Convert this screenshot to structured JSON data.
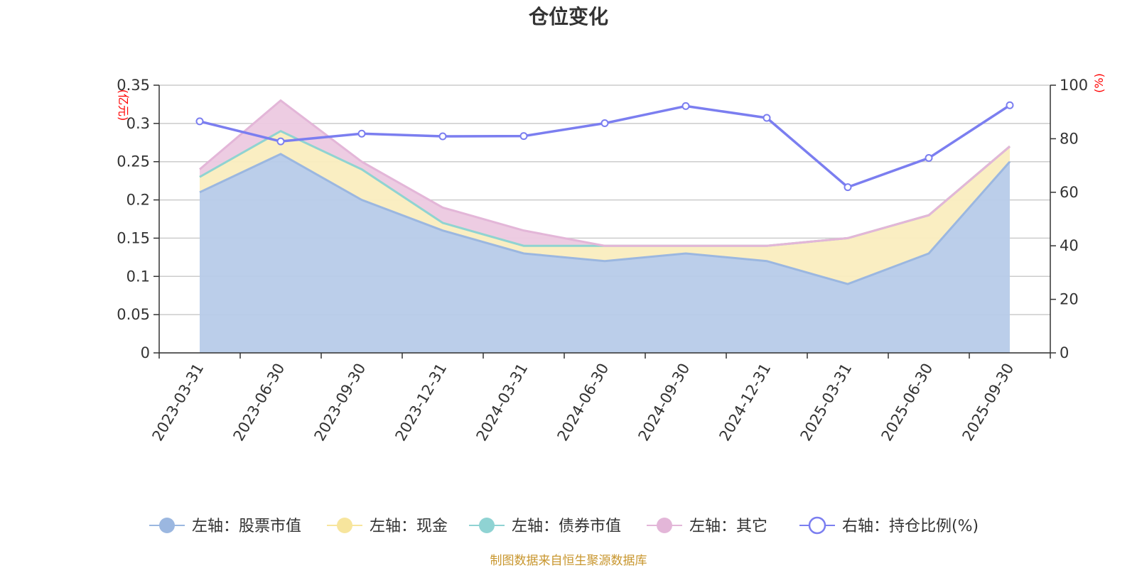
{
  "chart_data": {
    "type": "area",
    "title": "仓位变化",
    "left_axis": {
      "unit": "(亿元)",
      "ticks": [
        "0",
        "0.05",
        "0.1",
        "0.15",
        "0.2",
        "0.25",
        "0.3",
        "0.35"
      ],
      "ylim": [
        0,
        0.35
      ]
    },
    "right_axis": {
      "unit": "(%)",
      "ticks": [
        "0",
        "20",
        "40",
        "60",
        "80",
        "100"
      ],
      "ylim": [
        0,
        100
      ]
    },
    "categories": [
      "2023-03-31",
      "2023-06-30",
      "2023-09-30",
      "2023-12-31",
      "2024-03-31",
      "2024-06-30",
      "2024-09-30",
      "2024-12-31",
      "2025-03-31",
      "2025-06-30",
      "2025-09-30"
    ],
    "series": [
      {
        "name": "左轴：股票市值",
        "axis": "left",
        "stack": true,
        "color": "#9bb7e0",
        "fill": "#b7cbe9",
        "values": [
          0.21,
          0.26,
          0.2,
          0.16,
          0.13,
          0.12,
          0.13,
          0.12,
          0.09,
          0.13,
          0.25
        ]
      },
      {
        "name": "左轴：现金",
        "axis": "left",
        "stack": true,
        "color": "#f7e59d",
        "fill": "#faedbf",
        "values": [
          0.02,
          0.03,
          0.04,
          0.01,
          0.01,
          0.02,
          0.01,
          0.02,
          0.06,
          0.05,
          0.02
        ]
      },
      {
        "name": "左轴：债券市值",
        "axis": "left",
        "stack": true,
        "color": "#8fd3d3",
        "fill": "#b5e3e3",
        "values": [
          0,
          0,
          0,
          0,
          0,
          0,
          0,
          0,
          0,
          0,
          0
        ]
      },
      {
        "name": "左轴：其它",
        "axis": "left",
        "stack": true,
        "color": "#e3b6d8",
        "fill": "#ecc9e0",
        "values": [
          0.01,
          0.04,
          0.01,
          0.02,
          0.02,
          0.0,
          0.0,
          0.0,
          0.0,
          0.0,
          0.0
        ]
      },
      {
        "name": "右轴：持仓比例(%)",
        "axis": "right",
        "stack": false,
        "color": "#7b7ef0",
        "fill": "none",
        "values": [
          86.5,
          79.0,
          81.9,
          80.9,
          81.0,
          85.8,
          92.2,
          87.8,
          61.9,
          72.8,
          92.5
        ]
      }
    ],
    "source": "制图数据来自恒生聚源数据库"
  }
}
